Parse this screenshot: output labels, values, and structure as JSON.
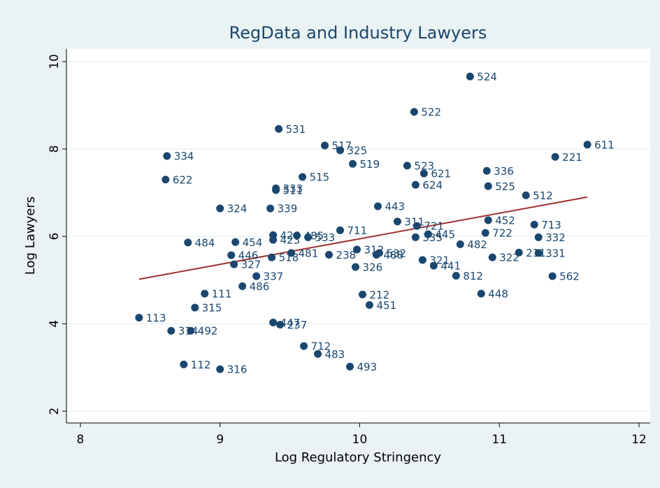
{
  "chart_data": {
    "type": "scatter",
    "title": "RegData and Industry Lawyers",
    "x_label": "Log Regulatory Stringency",
    "y_label": "Log Lawyers",
    "xlim": [
      7.9,
      12.08
    ],
    "ylim": [
      1.73,
      10.29
    ],
    "xticks": [
      8,
      9,
      10,
      11,
      12
    ],
    "yticks": [
      2,
      4,
      6,
      8,
      10
    ],
    "grid": true,
    "color": "#1a476f",
    "point_labels": [
      "524",
      "522",
      "531",
      "517",
      "325",
      "611",
      "221",
      "334",
      "519",
      "523",
      "621",
      "336",
      "622",
      "515",
      "333",
      "511",
      "624",
      "525",
      "512",
      "324",
      "339",
      "443",
      "311",
      "452",
      "713",
      "721",
      "711",
      "424",
      "423",
      "485",
      "533",
      "445",
      "335",
      "722",
      "332",
      "484",
      "454",
      "482",
      "312",
      "532",
      "488",
      "446",
      "518",
      "481",
      "238",
      "211",
      "331",
      "322",
      "321",
      "327",
      "441",
      "326",
      "337",
      "812",
      "562",
      "486",
      "111",
      "448",
      "212",
      "451",
      "315",
      "113",
      "447",
      "237",
      "314",
      "492",
      "712",
      "483",
      "112",
      "316",
      "493"
    ],
    "x": [
      10.79,
      10.39,
      9.42,
      9.75,
      9.86,
      11.63,
      11.4,
      8.62,
      9.95,
      10.34,
      10.46,
      10.91,
      8.61,
      9.59,
      9.4,
      9.4,
      10.4,
      10.92,
      11.19,
      9.0,
      9.36,
      10.13,
      10.27,
      10.92,
      11.25,
      10.41,
      9.86,
      9.38,
      9.38,
      9.55,
      9.63,
      10.49,
      10.4,
      10.9,
      11.28,
      8.77,
      9.11,
      10.72,
      9.98,
      10.14,
      10.12,
      9.08,
      9.37,
      9.51,
      9.78,
      11.14,
      11.28,
      10.95,
      10.45,
      9.1,
      10.53,
      9.97,
      9.26,
      10.69,
      11.38,
      9.16,
      8.89,
      10.87,
      10.02,
      10.07,
      8.82,
      8.42,
      9.38,
      9.43,
      8.65,
      8.79,
      9.6,
      9.7,
      8.74,
      9.0,
      9.93
    ],
    "y": [
      9.66,
      8.85,
      8.46,
      8.08,
      7.97,
      8.1,
      7.82,
      7.84,
      7.66,
      7.62,
      7.44,
      7.5,
      7.3,
      7.36,
      7.1,
      7.06,
      7.18,
      7.15,
      6.94,
      6.64,
      6.64,
      6.69,
      6.34,
      6.37,
      6.27,
      6.24,
      6.14,
      6.03,
      5.92,
      6.02,
      5.98,
      6.05,
      5.98,
      6.08,
      5.98,
      5.86,
      5.87,
      5.82,
      5.7,
      5.62,
      5.58,
      5.57,
      5.52,
      5.62,
      5.58,
      5.63,
      5.62,
      5.52,
      5.46,
      5.36,
      5.33,
      5.3,
      5.09,
      5.1,
      5.09,
      4.86,
      4.69,
      4.69,
      4.67,
      4.43,
      4.37,
      4.14,
      4.03,
      3.98,
      3.84,
      3.84,
      3.49,
      3.31,
      3.07,
      2.96,
      3.02
    ],
    "fit_line": {
      "x": [
        8.42,
        11.63
      ],
      "y": [
        5.02,
        6.9
      ],
      "color": "#a03030"
    }
  }
}
